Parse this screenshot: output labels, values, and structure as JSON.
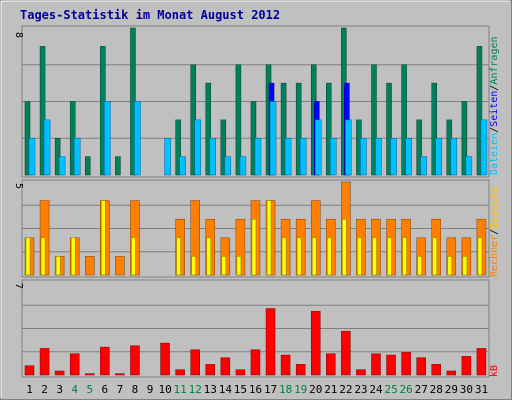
{
  "chart_data": {
    "type": "bar",
    "title": "Tages-Statistik im Monat August 2012",
    "categories": [
      "1",
      "2",
      "3",
      "4",
      "5",
      "6",
      "7",
      "8",
      "9",
      "10",
      "11",
      "12",
      "13",
      "14",
      "15",
      "16",
      "17",
      "18",
      "19",
      "20",
      "21",
      "22",
      "23",
      "24",
      "25",
      "26",
      "27",
      "28",
      "29",
      "30",
      "31"
    ],
    "weekend_days": [
      "4",
      "5",
      "11",
      "12",
      "18",
      "19",
      "25",
      "26"
    ],
    "panels": [
      {
        "name": "top",
        "ymax": 8,
        "y_tick_label": "8",
        "right_legend": [
          "Dateien",
          "Seiten",
          "Anfragen"
        ],
        "series": [
          {
            "name": "Anfragen",
            "color": "#00805C",
            "values": [
              4,
              7,
              2,
              4,
              1,
              7,
              1,
              8,
              0,
              0,
              3,
              6,
              5,
              3,
              6,
              4,
              6,
              5,
              5,
              6,
              5,
              8,
              3,
              6,
              5,
              6,
              3,
              5,
              3,
              4,
              7
            ]
          },
          {
            "name": "Seiten",
            "color": "#0000FF",
            "values": [
              0,
              0,
              0,
              0,
              0,
              0,
              0,
              0,
              0,
              0,
              0,
              0,
              0,
              0,
              0,
              0,
              5,
              0,
              0,
              4,
              0,
              5,
              0,
              0,
              0,
              0,
              0,
              0,
              0,
              0,
              0
            ]
          },
          {
            "name": "Dateien",
            "color": "#00C0FF",
            "values": [
              2,
              3,
              1,
              2,
              0,
              4,
              0,
              4,
              0,
              2,
              1,
              3,
              2,
              1,
              1,
              2,
              4,
              2,
              2,
              3,
              2,
              3,
              2,
              2,
              2,
              2,
              1,
              2,
              2,
              1,
              3
            ]
          }
        ]
      },
      {
        "name": "middle",
        "ymax": 5,
        "y_tick_label": "5",
        "right_legend": [
          "Rechner",
          "Besuche"
        ],
        "series": [
          {
            "name": "Besuche",
            "color": "#FF8000",
            "values": [
              2,
              4,
              1,
              2,
              1,
              4,
              1,
              4,
              0,
              0,
              3,
              4,
              3,
              2,
              3,
              4,
              4,
              3,
              3,
              4,
              3,
              5,
              3,
              3,
              3,
              3,
              2,
              3,
              2,
              2,
              3
            ]
          },
          {
            "name": "Rechner",
            "color": "#FFFF00",
            "values": [
              2,
              2,
              1,
              2,
              0,
              4,
              0,
              2,
              0,
              0,
              2,
              1,
              2,
              1,
              1,
              3,
              4,
              2,
              2,
              2,
              2,
              3,
              2,
              2,
              2,
              2,
              1,
              2,
              1,
              1,
              2
            ]
          }
        ]
      },
      {
        "name": "bottom",
        "ymax": 7,
        "y_tick_label": "7",
        "right_legend": [
          "kB"
        ],
        "series": [
          {
            "name": "kB",
            "color": "#FF0000",
            "values": [
              0.7,
              2.0,
              0.3,
              1.6,
              0.1,
              2.1,
              0.1,
              2.2,
              0,
              2.4,
              0.4,
              1.9,
              0.8,
              1.3,
              0.4,
              1.9,
              5.0,
              1.5,
              0.8,
              4.8,
              1.6,
              3.3,
              0.4,
              1.6,
              1.5,
              1.7,
              1.3,
              0.8,
              0.3,
              1.4,
              2.0
            ]
          }
        ]
      }
    ]
  },
  "colors": {
    "background": "#C0C0C0",
    "title": "#0000A0",
    "weekend_label": "#008040",
    "weekday_label": "#000000"
  }
}
